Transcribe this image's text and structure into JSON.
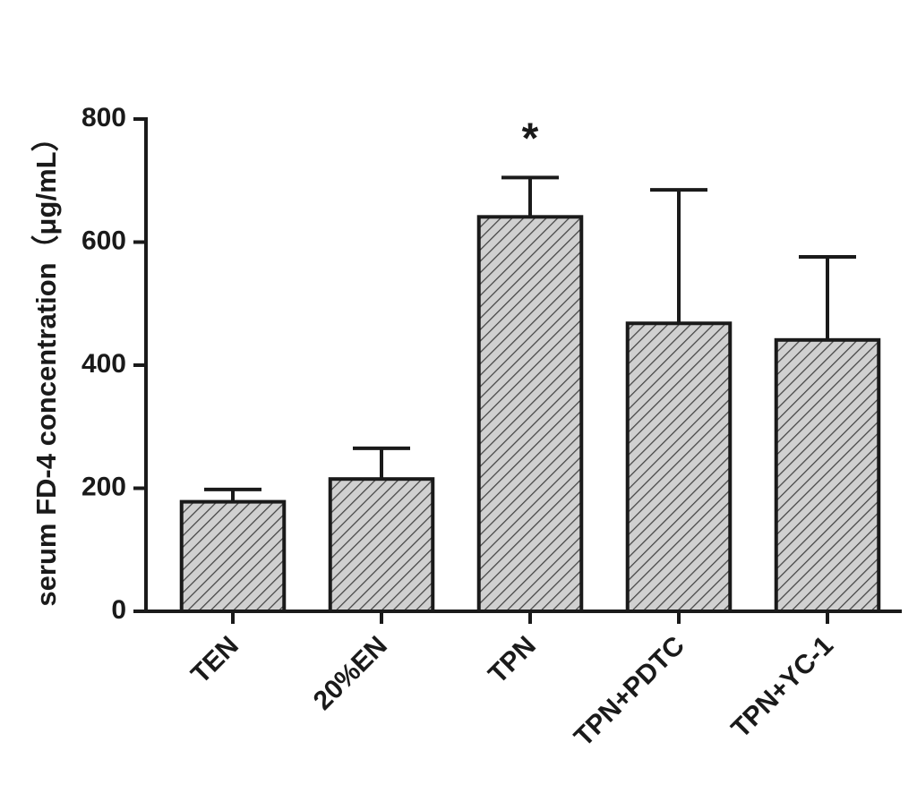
{
  "chart_data": {
    "type": "bar",
    "y_label": "serum FD-4 concentration（μg/mL）",
    "categories": [
      "TEN",
      "20%EN",
      "TPN",
      "TPN+PDTC",
      "TPN+YC-1"
    ],
    "values": [
      178,
      215,
      641,
      468,
      441
    ],
    "errors": [
      20,
      50,
      64,
      217,
      135
    ],
    "color": "#c8c8c8",
    "ylim": [
      0,
      800
    ],
    "yticks": [
      0,
      200,
      400,
      600,
      800
    ],
    "annotations": [
      {
        "text": "*",
        "category": "TPN"
      }
    ]
  }
}
